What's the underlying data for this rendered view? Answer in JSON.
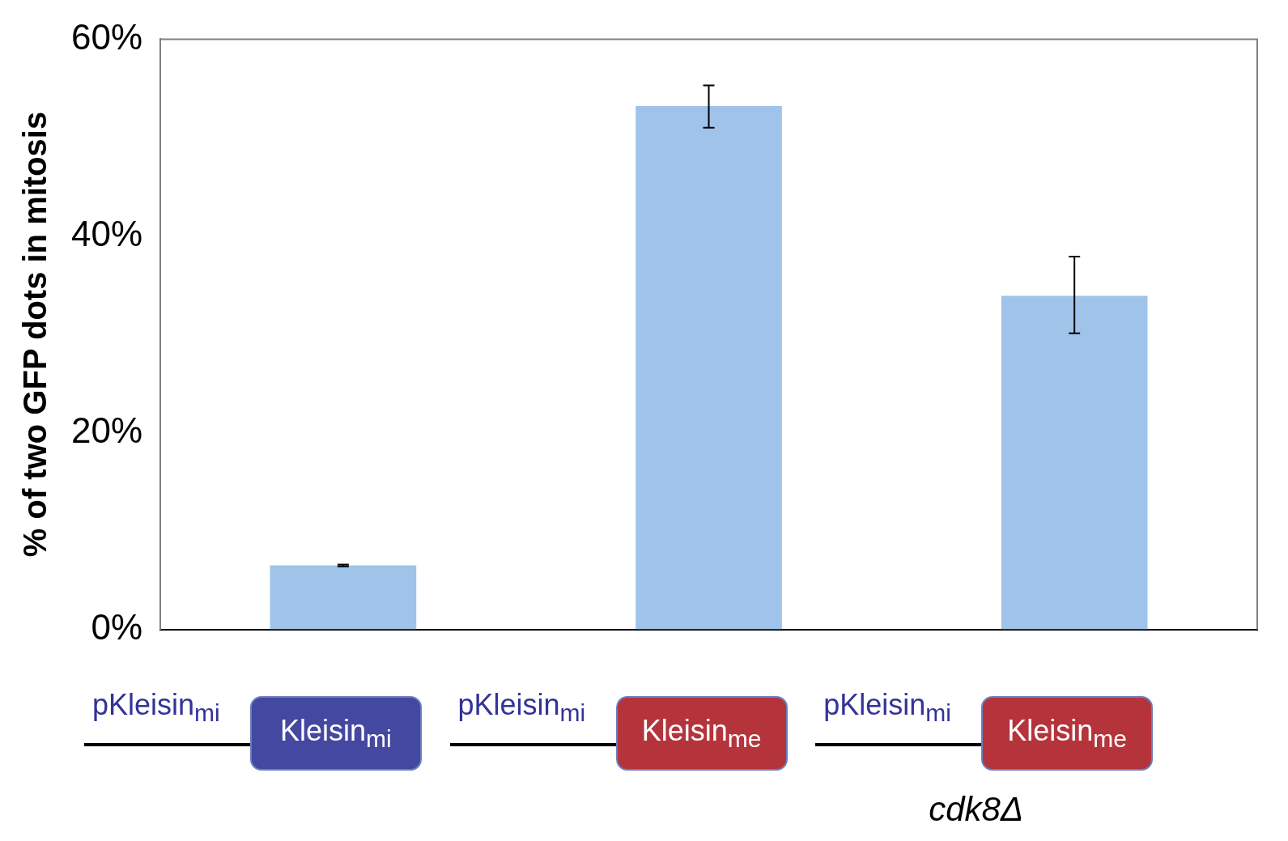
{
  "chart_data": {
    "type": "bar",
    "ylabel": "% of two GFP dots in mitosis",
    "categories": [
      "pKleisin$_{mi}$ Kleisin$_{mi}$",
      "pKleisin$_{mi}$ Kleisin$_{me}$",
      "pKleisin$_{mi}$ Kleisin$_{me}$ cdk8Δ"
    ],
    "values": [
      6.5,
      53.2,
      33.9
    ],
    "errors": [
      [
        6.4,
        6.6
      ],
      [
        51.0,
        55.3
      ],
      [
        30.1,
        37.9
      ]
    ],
    "color": "#9fc3e9",
    "ylim": [
      0,
      60
    ],
    "yticks": [
      {
        "value": 0,
        "label": "0%"
      },
      {
        "value": 20,
        "label": "20%"
      },
      {
        "value": 40,
        "label": "40%"
      },
      {
        "value": 60,
        "label": "60%"
      }
    ]
  }
}
